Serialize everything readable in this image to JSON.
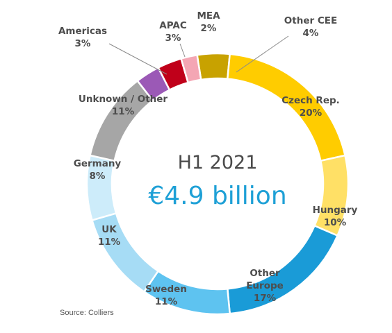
{
  "chart_data": {
    "type": "pie",
    "subtype": "donut",
    "center_title": "H1 2021",
    "center_value": "€4.9 billion",
    "slices": [
      {
        "label": "Other CEE",
        "value": 4,
        "pct_label": "4%",
        "color": "#c8a200"
      },
      {
        "label": "Czech Rep.",
        "value": 20,
        "pct_label": "20%",
        "color": "#ffcc00"
      },
      {
        "label": "Hungary",
        "value": 10,
        "pct_label": "10%",
        "color": "#ffe066"
      },
      {
        "label": "Other\nEurope",
        "value": 17,
        "pct_label": "17%",
        "color": "#1a9bd7"
      },
      {
        "label": "Sweden",
        "value": 11,
        "pct_label": "11%",
        "color": "#5ec3f0"
      },
      {
        "label": "UK",
        "value": 11,
        "pct_label": "11%",
        "color": "#a6dcf5"
      },
      {
        "label": "Germany",
        "value": 8,
        "pct_label": "8%",
        "color": "#cdecfa"
      },
      {
        "label": "Unknown / Other",
        "value": 11,
        "pct_label": "11%",
        "color": "#a6a6a6"
      },
      {
        "label": "Americas",
        "value": 3,
        "pct_label": "3%",
        "color": "#9b59b6"
      },
      {
        "label": "APAC",
        "value": 3,
        "pct_label": "3%",
        "color": "#c0001a"
      },
      {
        "label": "MEA",
        "value": 2,
        "pct_label": "2%",
        "color": "#f4a6b4"
      }
    ],
    "source": "Source: Colliers"
  }
}
